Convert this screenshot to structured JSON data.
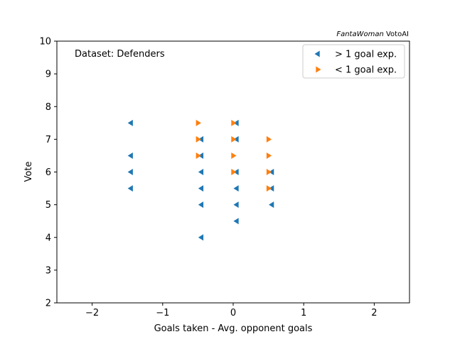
{
  "chart_data": {
    "type": "scatter",
    "title": "",
    "watermark": {
      "italic": "FantaWoman",
      "regular": " VotoAI"
    },
    "annotation": "Dataset: Defenders",
    "xlabel": "Goals taken - Avg. opponent goals",
    "ylabel": "Vote",
    "xlim": [
      -2.5,
      2.5
    ],
    "ylim": [
      2,
      10
    ],
    "xticks": [
      -2,
      -1,
      0,
      1,
      2
    ],
    "xtick_labels": [
      "−2",
      "−1",
      "0",
      "1",
      "2"
    ],
    "yticks": [
      2,
      3,
      4,
      5,
      6,
      7,
      8,
      9,
      10
    ],
    "ytick_labels": [
      "2",
      "3",
      "4",
      "5",
      "6",
      "7",
      "8",
      "9",
      "10"
    ],
    "grid": false,
    "legend_position": "top-right",
    "series": [
      {
        "name": "> 1 goal exp.",
        "marker": "triangle-left",
        "color": "#1f77b4",
        "points": [
          {
            "x": -1.45,
            "y": 7.5
          },
          {
            "x": -1.45,
            "y": 6.5
          },
          {
            "x": -1.45,
            "y": 6.0
          },
          {
            "x": -1.45,
            "y": 5.5
          },
          {
            "x": -0.45,
            "y": 7.0
          },
          {
            "x": -0.45,
            "y": 6.5
          },
          {
            "x": -0.45,
            "y": 6.0
          },
          {
            "x": -0.45,
            "y": 5.5
          },
          {
            "x": -0.45,
            "y": 5.0
          },
          {
            "x": -0.45,
            "y": 4.0
          },
          {
            "x": 0.05,
            "y": 7.5
          },
          {
            "x": 0.05,
            "y": 7.0
          },
          {
            "x": 0.05,
            "y": 6.0
          },
          {
            "x": 0.05,
            "y": 5.5
          },
          {
            "x": 0.05,
            "y": 5.0
          },
          {
            "x": 0.05,
            "y": 4.5
          },
          {
            "x": 0.55,
            "y": 6.0
          },
          {
            "x": 0.55,
            "y": 5.5
          },
          {
            "x": 0.55,
            "y": 5.0
          }
        ]
      },
      {
        "name": "< 1 goal exp.",
        "marker": "triangle-right",
        "color": "#ff7f0e",
        "points": [
          {
            "x": -0.5,
            "y": 7.5
          },
          {
            "x": -0.5,
            "y": 7.0
          },
          {
            "x": -0.5,
            "y": 6.5
          },
          {
            "x": 0.0,
            "y": 7.5
          },
          {
            "x": 0.0,
            "y": 7.0
          },
          {
            "x": 0.0,
            "y": 6.5
          },
          {
            "x": 0.0,
            "y": 6.0
          },
          {
            "x": 0.5,
            "y": 7.0
          },
          {
            "x": 0.5,
            "y": 6.5
          },
          {
            "x": 0.5,
            "y": 6.0
          },
          {
            "x": 0.5,
            "y": 5.5
          }
        ]
      }
    ]
  }
}
